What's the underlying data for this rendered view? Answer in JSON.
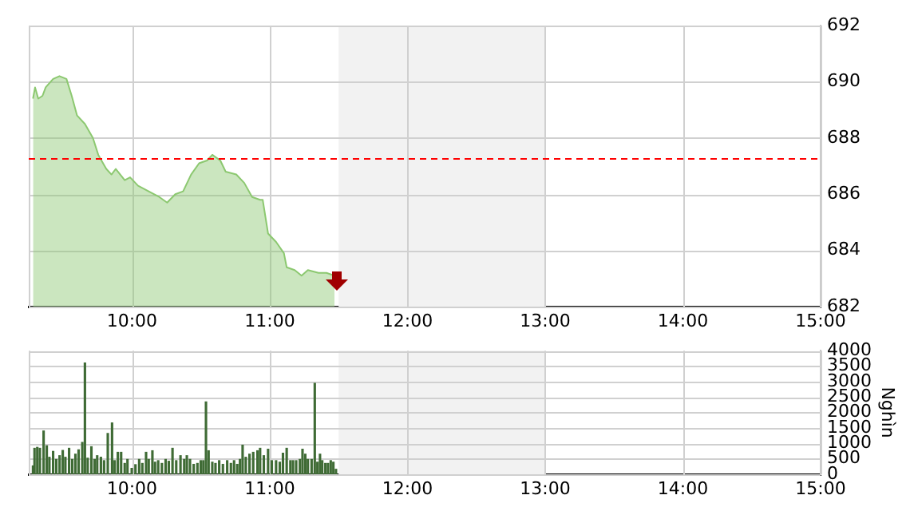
{
  "chart_data": [
    {
      "type": "area",
      "color": "#8cc870",
      "xlim": [
        9.25,
        15
      ],
      "ylim": [
        682,
        692
      ],
      "grid": true,
      "xticks": [
        {
          "value": 10,
          "label": "10:00"
        },
        {
          "value": 11,
          "label": "11:00"
        },
        {
          "value": 12,
          "label": "12:00"
        },
        {
          "value": 13,
          "label": "13:00"
        },
        {
          "value": 14,
          "label": "14:00"
        },
        {
          "value": 15,
          "label": "15:00"
        }
      ],
      "yticks": [
        682,
        684,
        686,
        688,
        690,
        692
      ],
      "x": [
        9.281,
        9.296,
        9.319,
        9.35,
        9.373,
        9.427,
        9.473,
        9.524,
        9.562,
        9.601,
        9.658,
        9.716,
        9.755,
        9.813,
        9.851,
        9.882,
        9.947,
        9.986,
        10.044,
        10.159,
        10.198,
        10.255,
        10.314,
        10.371,
        10.429,
        10.487,
        10.545,
        10.583,
        10.641,
        10.68,
        10.757,
        10.815,
        10.872,
        10.93,
        10.949,
        10.988,
        11.046,
        11.103,
        11.123,
        11.181,
        11.231,
        11.277,
        11.354,
        11.412,
        11.47
      ],
      "values": [
        689.4,
        689.8,
        689.4,
        689.5,
        689.8,
        690.1,
        690.2,
        690.1,
        689.5,
        688.8,
        688.5,
        688.0,
        687.4,
        686.9,
        686.7,
        686.9,
        686.5,
        686.6,
        686.3,
        686.0,
        685.9,
        685.7,
        686.0,
        686.1,
        686.7,
        687.1,
        687.2,
        687.4,
        687.2,
        686.8,
        686.7,
        686.4,
        685.9,
        685.8,
        685.8,
        684.6,
        684.3,
        683.9,
        683.4,
        683.3,
        683.1,
        683.3,
        683.2,
        683.2,
        683.1
      ],
      "ref_lines": [
        {
          "axis": "y",
          "value": 687.3,
          "color": "#ff0000",
          "line_style": "dashed"
        }
      ],
      "bands": [
        {
          "axis": "x",
          "from": 11.5,
          "to": 13,
          "color": "#f2f2f2"
        }
      ]
    },
    {
      "type": "bar",
      "color": "#3f6b35",
      "xlim": [
        9.25,
        15
      ],
      "ylim": [
        0,
        4000
      ],
      "grid": true,
      "ylabel": "Nghìn",
      "xticks": [
        {
          "value": 10,
          "label": "10:00"
        },
        {
          "value": 11,
          "label": "11:00"
        },
        {
          "value": 12,
          "label": "12:00"
        },
        {
          "value": 13,
          "label": "13:00"
        },
        {
          "value": 14,
          "label": "14:00"
        },
        {
          "value": 15,
          "label": "15:00"
        }
      ],
      "yticks": [
        0,
        500,
        1000,
        1500,
        2000,
        2500,
        3000,
        3500,
        4000
      ],
      "x": [
        9.281,
        9.292,
        9.312,
        9.331,
        9.358,
        9.381,
        9.4,
        9.427,
        9.45,
        9.474,
        9.497,
        9.516,
        9.543,
        9.566,
        9.589,
        9.612,
        9.639,
        9.658,
        9.678,
        9.705,
        9.728,
        9.747,
        9.774,
        9.797,
        9.824,
        9.855,
        9.874,
        9.897,
        9.921,
        9.947,
        9.967,
        9.998,
        10.025,
        10.052,
        10.075,
        10.102,
        10.121,
        10.148,
        10.167,
        10.19,
        10.217,
        10.244,
        10.267,
        10.294,
        10.321,
        10.352,
        10.379,
        10.398,
        10.421,
        10.448,
        10.475,
        10.499,
        10.518,
        10.537,
        10.556,
        10.583,
        10.606,
        10.633,
        10.66,
        10.691,
        10.718,
        10.741,
        10.764,
        10.784,
        10.803,
        10.826,
        10.853,
        10.88,
        10.911,
        10.93,
        10.957,
        10.988,
        11.015,
        11.046,
        11.073,
        11.096,
        11.123,
        11.15,
        11.169,
        11.192,
        11.219,
        11.238,
        11.258,
        11.277,
        11.304,
        11.327,
        11.346,
        11.365,
        11.381,
        11.404,
        11.423,
        11.443,
        11.462,
        11.481
      ],
      "values": [
        270,
        840,
        870,
        840,
        1400,
        920,
        550,
        740,
        480,
        600,
        770,
        550,
        840,
        480,
        650,
        790,
        1030,
        3600,
        520,
        890,
        480,
        600,
        550,
        440,
        1320,
        1660,
        440,
        710,
        710,
        350,
        480,
        190,
        310,
        480,
        350,
        710,
        480,
        760,
        390,
        440,
        350,
        480,
        420,
        840,
        440,
        600,
        480,
        600,
        480,
        320,
        350,
        440,
        440,
        2340,
        760,
        390,
        350,
        440,
        320,
        440,
        350,
        440,
        320,
        480,
        940,
        550,
        650,
        710,
        760,
        840,
        600,
        810,
        440,
        440,
        390,
        680,
        840,
        440,
        440,
        440,
        480,
        810,
        650,
        480,
        480,
        2940,
        390,
        650,
        440,
        350,
        350,
        440,
        390,
        160
      ],
      "bands": [
        {
          "axis": "x",
          "from": 11.5,
          "to": 13,
          "color": "#f2f2f2"
        }
      ]
    }
  ]
}
